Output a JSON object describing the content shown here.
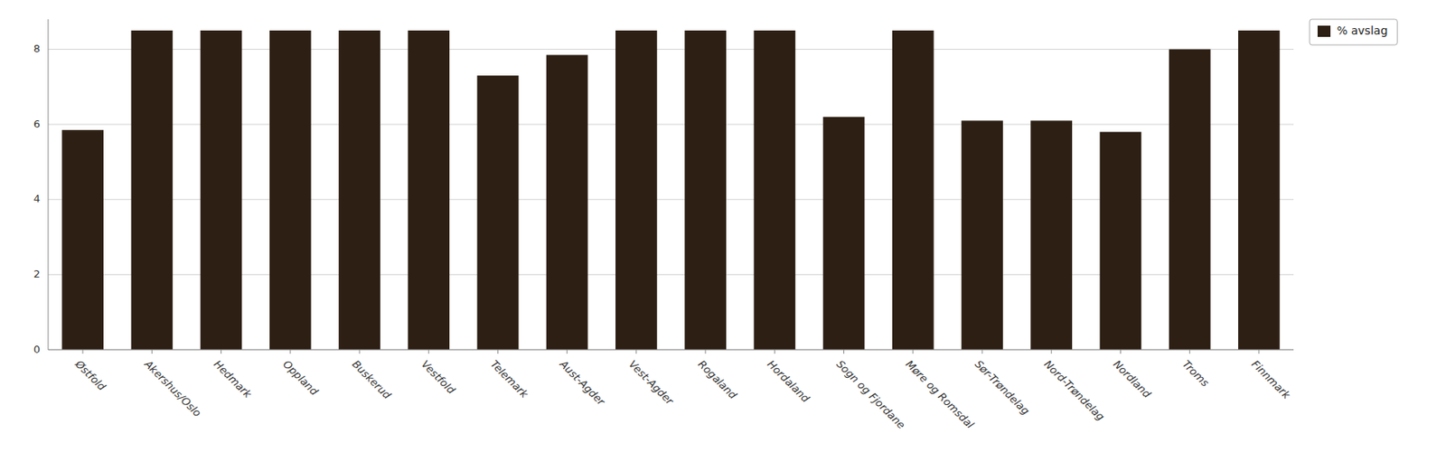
{
  "chart_data": {
    "type": "bar",
    "categories": [
      "Østfold",
      "Akershus/Oslo",
      "Hedmark",
      "Oppland",
      "Buskerud",
      "Vestfold",
      "Telemark",
      "Aust-Agder",
      "Vest-Agder",
      "Rogaland",
      "Hordaland",
      "Sogn og Fjordane",
      "Møre og Romsdal",
      "Sør-Trøndelag",
      "Nord-Trøndelag",
      "Nordland",
      "Troms",
      "Finnmark"
    ],
    "series": [
      {
        "name": "% avslag",
        "color": "#2d1f14",
        "values": [
          5.85,
          8.5,
          8.5,
          8.5,
          8.5,
          8.5,
          7.3,
          7.85,
          8.5,
          8.5,
          8.5,
          6.2,
          8.5,
          6.1,
          6.1,
          5.8,
          8.0,
          8.5
        ]
      }
    ],
    "ylim": [
      0,
      8.8
    ],
    "yticks": [
      0,
      2,
      4,
      6,
      8
    ],
    "grid": true,
    "legend": "upper right"
  }
}
